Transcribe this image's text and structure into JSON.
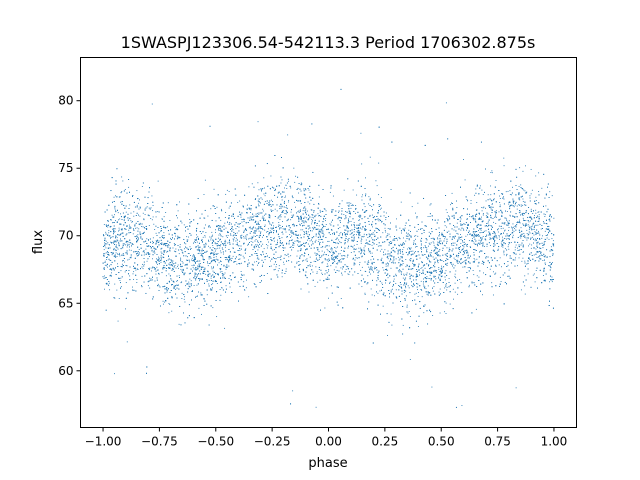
{
  "chart_data": {
    "type": "scatter",
    "title": "1SWASPJ123306.54-542113.3 Period 1706302.875s",
    "xlabel": "phase",
    "ylabel": "flux",
    "xlim": [
      -1.1,
      1.1
    ],
    "ylim": [
      55.8,
      83.2
    ],
    "xticks": [
      -1.0,
      -0.75,
      -0.5,
      -0.25,
      0.0,
      0.25,
      0.5,
      0.75,
      1.0
    ],
    "xtick_labels": [
      "−1.00",
      "−0.75",
      "−0.50",
      "−0.25",
      "0.00",
      "0.25",
      "0.50",
      "0.75",
      "1.00"
    ],
    "yticks": [
      60,
      65,
      70,
      75,
      80
    ],
    "ytick_labels": [
      "60",
      "65",
      "70",
      "75",
      "80"
    ],
    "grid": false,
    "series": [
      {
        "color": "#1f77b4",
        "point_count": 9000,
        "points_summary": {
          "profile_phase": [
            0.0,
            0.1,
            0.2,
            0.3,
            0.4,
            0.5,
            0.6,
            0.7,
            0.8,
            0.9
          ],
          "profile_mean_flux": [
            69.0,
            70.0,
            69.3,
            68.2,
            68.0,
            68.6,
            69.5,
            70.2,
            70.6,
            70.4
          ],
          "scatter_sd": 1.8,
          "outlier_range": [
            57,
            81.5
          ]
        }
      }
    ]
  }
}
